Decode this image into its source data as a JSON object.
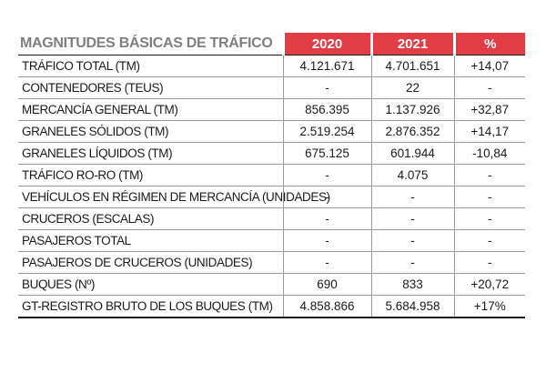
{
  "table": {
    "title": "MAGNITUDES BÁSICAS DE TRÁFICO",
    "columns": [
      "2020",
      "2021",
      "%"
    ],
    "rows": [
      {
        "label": "TRÁFICO TOTAL (TM)",
        "y2020": "4.121.671",
        "y2021": "4.701.651",
        "pct": "+14,07"
      },
      {
        "label": "CONTENEDORES (TEUS)",
        "y2020": "-",
        "y2021": "22",
        "pct": "-"
      },
      {
        "label": "MERCANCÍA GENERAL (TM)",
        "y2020": "856.395",
        "y2021": "1.137.926",
        "pct": "+32,87"
      },
      {
        "label": "GRANELES SÓLIDOS (TM)",
        "y2020": "2.519.254",
        "y2021": "2.876.352",
        "pct": "+14,17"
      },
      {
        "label": "GRANELES LÍQUIDOS (TM)",
        "y2020": "675.125",
        "y2021": "601.944",
        "pct": "-10,84"
      },
      {
        "label": "TRÁFICO RO-RO (TM)",
        "y2020": "-",
        "y2021": "4.075",
        "pct": "-"
      },
      {
        "label": "VEHÍCULOS EN RÉGIMEN DE MERCANCÍA (UNIDADES)",
        "y2020": "-",
        "y2021": "-",
        "pct": "-"
      },
      {
        "label": "CRUCEROS (ESCALAS)",
        "y2020": "-",
        "y2021": "-",
        "pct": "-"
      },
      {
        "label": "PASAJEROS TOTAL",
        "y2020": "-",
        "y2021": "-",
        "pct": "-"
      },
      {
        "label": "PASAJEROS DE CRUCEROS (UNIDADES)",
        "y2020": "-",
        "y2021": "-",
        "pct": "-"
      },
      {
        "label": "BUQUES (Nº)",
        "y2020": "690",
        "y2021": "833",
        "pct": "+20,72"
      },
      {
        "label": "GT-REGISTRO BRUTO DE LOS BUQUES (TM)",
        "y2020": "4.858.866",
        "y2021": "5.684.958",
        "pct": "+17%"
      }
    ]
  },
  "colors": {
    "header_red": "#e23c44",
    "title_gray": "#7f7f7f"
  }
}
